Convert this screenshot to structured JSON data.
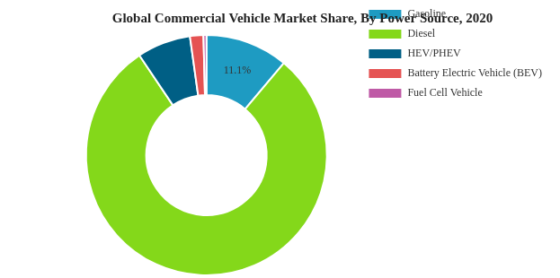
{
  "chart_data": {
    "type": "doughnut",
    "title": "Global Commercial Vehicle Market Share, By Power Source, 2020",
    "categories": [
      "Gasoline",
      "Diesel",
      "HEV/PHEV",
      "Battery Electric Vehicle (BEV)",
      "Fuel Cell Vehicle"
    ],
    "values": [
      11.1,
      79.5,
      7.2,
      1.8,
      0.4
    ],
    "colors": [
      "#1e9bc2",
      "#84d81a",
      "#005f85",
      "#e55353",
      "#bf5aa6"
    ],
    "data_labels": true,
    "value_labels": [
      "11.1%",
      null,
      null,
      null,
      null
    ],
    "legend": "right"
  }
}
